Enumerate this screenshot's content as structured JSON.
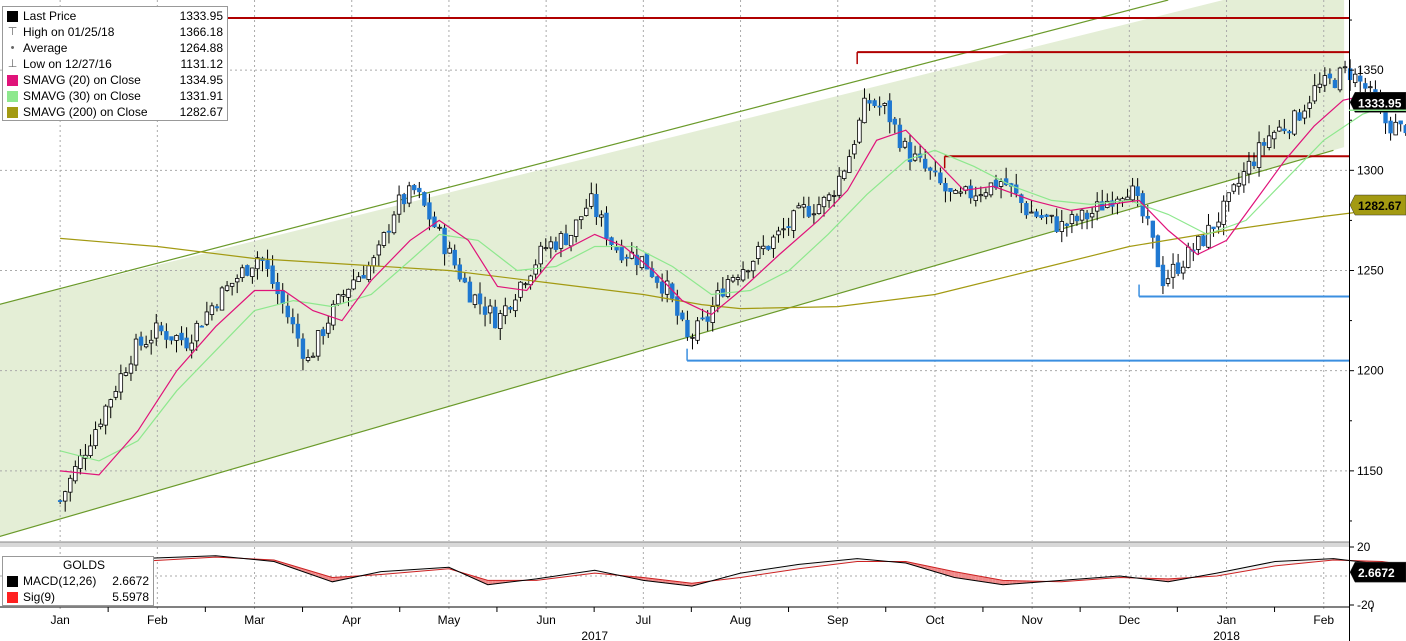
{
  "legend": [
    {
      "label": "Last Price",
      "value": "1333.95",
      "swatch": "#000000",
      "icon": "last-price-square-icon"
    },
    {
      "label": "High on 01/25/18",
      "value": "1366.18",
      "swatch": "",
      "icon": "high-marker-icon"
    },
    {
      "label": "Average",
      "value": "1264.88",
      "swatch": "",
      "icon": "average-marker-icon"
    },
    {
      "label": "Low on 12/27/16",
      "value": "1131.12",
      "swatch": "",
      "icon": "low-marker-icon"
    },
    {
      "label": "SMAVG (20) on Close",
      "value": "1334.95",
      "swatch": "#e0137a"
    },
    {
      "label": "SMAVG (30) on Close",
      "value": "1331.91",
      "swatch": "#8ee88e"
    },
    {
      "label": "SMAVG (200) on Close",
      "value": "1282.67",
      "swatch": "#a39a12"
    }
  ],
  "macd_legend": {
    "title": "GOLDS",
    "items": [
      {
        "label": "MACD(12,26)",
        "value": "2.6672",
        "swatch": "#000000"
      },
      {
        "label": "Sig(9)",
        "value": "5.5978",
        "swatch": "#ff2020"
      }
    ]
  },
  "chart_data": {
    "type": "candlestick",
    "y_ticks": [
      "1350",
      "1300",
      "1250",
      "1200",
      "1150"
    ],
    "ylim": [
      1115,
      1385
    ],
    "months": [
      "Jan",
      "Feb",
      "Mar",
      "Apr",
      "May",
      "Jun",
      "Jul",
      "Aug",
      "Sep",
      "Oct",
      "Nov",
      "Dec",
      "Jan",
      "Feb"
    ],
    "years": [
      "2017",
      "2018"
    ],
    "last_price_tag": "1333.95",
    "sma200_tag": "1282.67",
    "macd_tag": "2.6672",
    "macd_ticks": [
      "20",
      "-20"
    ],
    "horizontal_levels": [
      {
        "value": 1376,
        "color": "#b00000",
        "from_month": 0
      },
      {
        "value": 1359,
        "color": "#b00000",
        "from_month": 8.2
      },
      {
        "value": 1307,
        "color": "#b00000",
        "from_month": 9.1
      },
      {
        "value": 1237,
        "color": "#3b8fe0",
        "from_month": 11.1
      },
      {
        "value": 1205,
        "color": "#3b8fe0",
        "from_month": 6.45
      }
    ],
    "channel": {
      "upper": [
        [
          0,
          1241
        ],
        [
          11.4,
          1385
        ]
      ],
      "lower": [
        [
          0,
          1126
        ],
        [
          13.1,
          1310
        ]
      ]
    },
    "price_path": [
      [
        0,
        1135
      ],
      [
        0.25,
        1160
      ],
      [
        0.5,
        1185
      ],
      [
        0.75,
        1210
      ],
      [
        1.0,
        1220
      ],
      [
        1.3,
        1215
      ],
      [
        1.6,
        1235
      ],
      [
        1.85,
        1248
      ],
      [
        2.05,
        1258
      ],
      [
        2.3,
        1232
      ],
      [
        2.55,
        1205
      ],
      [
        2.75,
        1225
      ],
      [
        3.0,
        1245
      ],
      [
        3.25,
        1255
      ],
      [
        3.45,
        1282
      ],
      [
        3.65,
        1290
      ],
      [
        3.9,
        1268
      ],
      [
        4.2,
        1240
      ],
      [
        4.5,
        1225
      ],
      [
        4.75,
        1245
      ],
      [
        5.0,
        1262
      ],
      [
        5.25,
        1268
      ],
      [
        5.45,
        1285
      ],
      [
        5.7,
        1262
      ],
      [
        6.0,
        1255
      ],
      [
        6.25,
        1240
      ],
      [
        6.45,
        1215
      ],
      [
        6.65,
        1225
      ],
      [
        6.85,
        1245
      ],
      [
        7.1,
        1255
      ],
      [
        7.4,
        1268
      ],
      [
        7.65,
        1280
      ],
      [
        7.9,
        1285
      ],
      [
        8.1,
        1305
      ],
      [
        8.3,
        1335
      ],
      [
        8.5,
        1330
      ],
      [
        8.7,
        1310
      ],
      [
        8.95,
        1298
      ],
      [
        9.2,
        1285
      ],
      [
        9.45,
        1290
      ],
      [
        9.7,
        1295
      ],
      [
        9.95,
        1280
      ],
      [
        10.3,
        1272
      ],
      [
        10.6,
        1278
      ],
      [
        10.85,
        1288
      ],
      [
        11.0,
        1292
      ],
      [
        11.2,
        1270
      ],
      [
        11.35,
        1245
      ],
      [
        11.55,
        1255
      ],
      [
        11.75,
        1265
      ],
      [
        12.0,
        1282
      ],
      [
        12.2,
        1300
      ],
      [
        12.45,
        1318
      ],
      [
        12.7,
        1325
      ],
      [
        12.9,
        1340
      ],
      [
        13.1,
        1345
      ],
      [
        13.25,
        1350
      ],
      [
        13.45,
        1340
      ],
      [
        13.6,
        1325
      ],
      [
        13.8,
        1320
      ],
      [
        14.0,
        1332
      ]
    ],
    "sma20_path": [
      [
        0,
        1150
      ],
      [
        0.4,
        1148
      ],
      [
        0.8,
        1170
      ],
      [
        1.2,
        1200
      ],
      [
        1.6,
        1222
      ],
      [
        2.0,
        1240
      ],
      [
        2.3,
        1240
      ],
      [
        2.6,
        1230
      ],
      [
        2.9,
        1225
      ],
      [
        3.2,
        1245
      ],
      [
        3.6,
        1265
      ],
      [
        3.9,
        1275
      ],
      [
        4.2,
        1265
      ],
      [
        4.5,
        1242
      ],
      [
        4.8,
        1240
      ],
      [
        5.1,
        1258
      ],
      [
        5.5,
        1268
      ],
      [
        5.8,
        1262
      ],
      [
        6.1,
        1250
      ],
      [
        6.4,
        1235
      ],
      [
        6.7,
        1228
      ],
      [
        7.0,
        1240
      ],
      [
        7.4,
        1258
      ],
      [
        7.8,
        1275
      ],
      [
        8.1,
        1290
      ],
      [
        8.4,
        1315
      ],
      [
        8.7,
        1320
      ],
      [
        9.0,
        1305
      ],
      [
        9.3,
        1290
      ],
      [
        9.6,
        1292
      ],
      [
        10.0,
        1285
      ],
      [
        10.4,
        1280
      ],
      [
        10.8,
        1283
      ],
      [
        11.1,
        1285
      ],
      [
        11.4,
        1270
      ],
      [
        11.7,
        1258
      ],
      [
        12.0,
        1265
      ],
      [
        12.3,
        1285
      ],
      [
        12.6,
        1305
      ],
      [
        12.9,
        1322
      ],
      [
        13.2,
        1335
      ],
      [
        13.5,
        1338
      ],
      [
        13.8,
        1335
      ],
      [
        14.0,
        1334
      ]
    ],
    "sma30_path": [
      [
        0,
        1160
      ],
      [
        0.4,
        1155
      ],
      [
        0.8,
        1165
      ],
      [
        1.2,
        1190
      ],
      [
        1.6,
        1210
      ],
      [
        2.0,
        1230
      ],
      [
        2.4,
        1235
      ],
      [
        2.8,
        1232
      ],
      [
        3.2,
        1238
      ],
      [
        3.6,
        1255
      ],
      [
        3.9,
        1268
      ],
      [
        4.3,
        1265
      ],
      [
        4.7,
        1250
      ],
      [
        5.1,
        1252
      ],
      [
        5.5,
        1262
      ],
      [
        5.9,
        1262
      ],
      [
        6.3,
        1252
      ],
      [
        6.7,
        1238
      ],
      [
        7.1,
        1240
      ],
      [
        7.5,
        1250
      ],
      [
        7.9,
        1268
      ],
      [
        8.3,
        1288
      ],
      [
        8.7,
        1305
      ],
      [
        9.0,
        1310
      ],
      [
        9.4,
        1302
      ],
      [
        9.8,
        1292
      ],
      [
        10.2,
        1285
      ],
      [
        10.6,
        1283
      ],
      [
        11.0,
        1285
      ],
      [
        11.4,
        1278
      ],
      [
        11.8,
        1268
      ],
      [
        12.2,
        1275
      ],
      [
        12.6,
        1295
      ],
      [
        13.0,
        1315
      ],
      [
        13.4,
        1328
      ],
      [
        13.7,
        1333
      ],
      [
        14.0,
        1332
      ]
    ],
    "sma200_path": [
      [
        0,
        1266
      ],
      [
        1.0,
        1262
      ],
      [
        2.0,
        1256
      ],
      [
        3.0,
        1253
      ],
      [
        4.0,
        1250
      ],
      [
        5.0,
        1244
      ],
      [
        6.0,
        1238
      ],
      [
        6.6,
        1233
      ],
      [
        7.0,
        1231
      ],
      [
        8.0,
        1232
      ],
      [
        9.0,
        1238
      ],
      [
        10.0,
        1250
      ],
      [
        11.0,
        1262
      ],
      [
        12.0,
        1270
      ],
      [
        13.0,
        1277
      ],
      [
        14.0,
        1283
      ]
    ],
    "macd_path": [
      [
        0,
        8
      ],
      [
        0.8,
        12
      ],
      [
        1.6,
        14
      ],
      [
        2.2,
        10
      ],
      [
        2.8,
        -4
      ],
      [
        3.3,
        3
      ],
      [
        4.0,
        6
      ],
      [
        4.4,
        -6
      ],
      [
        4.9,
        -2
      ],
      [
        5.5,
        4
      ],
      [
        6.0,
        -3
      ],
      [
        6.5,
        -7
      ],
      [
        7.0,
        2
      ],
      [
        7.6,
        8
      ],
      [
        8.2,
        12
      ],
      [
        8.7,
        9
      ],
      [
        9.2,
        -1
      ],
      [
        9.7,
        -6
      ],
      [
        10.3,
        -3
      ],
      [
        10.9,
        0
      ],
      [
        11.4,
        -4
      ],
      [
        11.9,
        2
      ],
      [
        12.5,
        10
      ],
      [
        13.1,
        12
      ],
      [
        13.6,
        8
      ],
      [
        14.0,
        3
      ]
    ],
    "sig_path": [
      [
        0,
        6
      ],
      [
        0.8,
        10
      ],
      [
        1.6,
        13
      ],
      [
        2.2,
        11
      ],
      [
        2.8,
        -1
      ],
      [
        3.3,
        1
      ],
      [
        4.0,
        5
      ],
      [
        4.4,
        -3
      ],
      [
        4.9,
        -3
      ],
      [
        5.5,
        2
      ],
      [
        6.0,
        -1
      ],
      [
        6.5,
        -5
      ],
      [
        7.0,
        -1
      ],
      [
        7.6,
        5
      ],
      [
        8.2,
        10
      ],
      [
        8.7,
        10
      ],
      [
        9.2,
        3
      ],
      [
        9.7,
        -3
      ],
      [
        10.3,
        -4
      ],
      [
        10.9,
        -1
      ],
      [
        11.4,
        -2
      ],
      [
        11.9,
        0
      ],
      [
        12.5,
        7
      ],
      [
        13.1,
        11
      ],
      [
        13.6,
        10
      ],
      [
        14.0,
        6
      ]
    ]
  }
}
